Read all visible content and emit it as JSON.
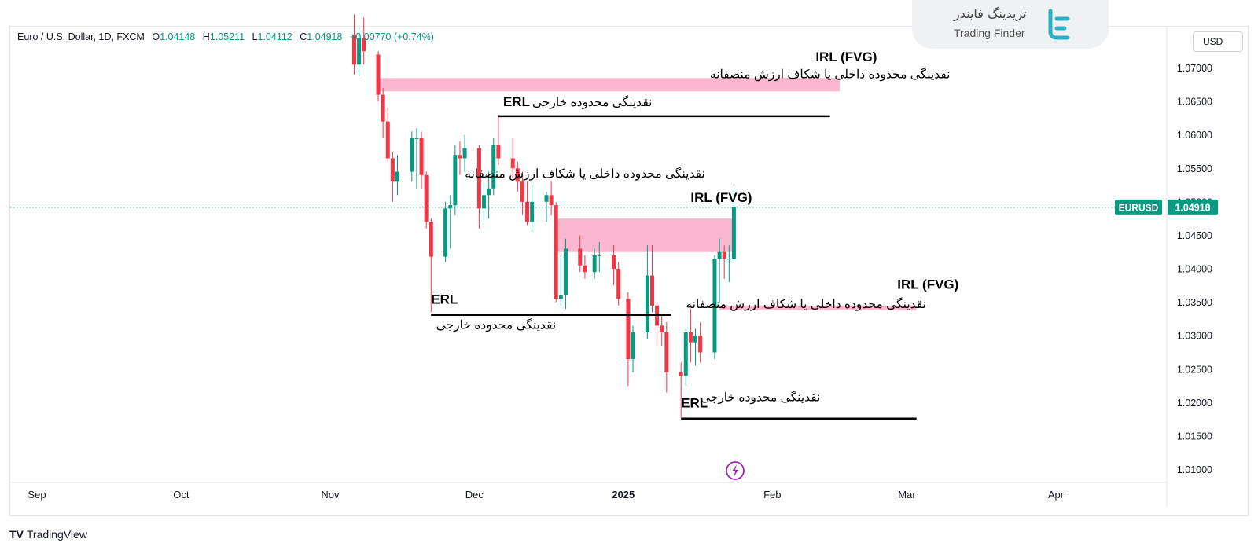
{
  "chart_data": {
    "type": "candlestick",
    "symbol": "EURUSD",
    "legend": {
      "title": "Euro / U.S. Dollar, 1D, FXCM",
      "o_label": "O",
      "o": "1.04148",
      "h_label": "H",
      "h": "1.05211",
      "l_label": "L",
      "l": "1.04112",
      "c_label": "C",
      "c": "1.04918",
      "change": "+0.00770 (+0.74%)"
    },
    "currency": "USD",
    "last_price": "1.04918",
    "last_price_value": 1.04918,
    "ylim": [
      1.0065,
      1.0765
    ],
    "y_ticks": [
      "1.07000",
      "1.06500",
      "1.06000",
      "1.05500",
      "1.05000",
      "1.04500",
      "1.04000",
      "1.03500",
      "1.03000",
      "1.02500",
      "1.02000",
      "1.01500",
      "1.01000"
    ],
    "x_ticks": [
      {
        "date": "2024-09-01",
        "label": "Sep"
      },
      {
        "date": "2024-10-01",
        "label": "Oct"
      },
      {
        "date": "2024-11-01",
        "label": "Nov"
      },
      {
        "date": "2024-12-01",
        "label": "Dec"
      },
      {
        "date": "2025-01-01",
        "label": "2025"
      },
      {
        "date": "2025-02-01",
        "label": "Feb"
      },
      {
        "date": "2025-03-01",
        "label": "Mar"
      },
      {
        "date": "2025-04-01",
        "label": "Apr"
      }
    ],
    "date_range": [
      "2024-09-01",
      "2025-04-01"
    ],
    "up_color": "#089981",
    "down_color": "#f23645",
    "candles": [
      {
        "d": "2024-11-06",
        "o": 1.075,
        "h": 1.078,
        "l": 1.069,
        "c": 1.0705
      },
      {
        "d": "2024-11-07",
        "o": 1.0705,
        "h": 1.076,
        "l": 1.0688,
        "c": 1.0745
      },
      {
        "d": "2024-11-08",
        "o": 1.0745,
        "h": 1.0775,
        "l": 1.0705,
        "c": 1.0725
      },
      {
        "d": "2024-11-11",
        "o": 1.072,
        "h": 1.0725,
        "l": 1.065,
        "c": 1.066
      },
      {
        "d": "2024-11-12",
        "o": 1.066,
        "h": 1.067,
        "l": 1.0595,
        "c": 1.062
      },
      {
        "d": "2024-11-13",
        "o": 1.062,
        "h": 1.064,
        "l": 1.056,
        "c": 1.0565
      },
      {
        "d": "2024-11-14",
        "o": 1.0565,
        "h": 1.0575,
        "l": 1.05,
        "c": 1.053
      },
      {
        "d": "2024-11-15",
        "o": 1.053,
        "h": 1.057,
        "l": 1.051,
        "c": 1.0545
      },
      {
        "d": "2024-11-18",
        "o": 1.0545,
        "h": 1.0605,
        "l": 1.053,
        "c": 1.0595
      },
      {
        "d": "2024-11-19",
        "o": 1.0595,
        "h": 1.061,
        "l": 1.052,
        "c": 1.0595
      },
      {
        "d": "2024-11-20",
        "o": 1.0595,
        "h": 1.0605,
        "l": 1.052,
        "c": 1.054
      },
      {
        "d": "2024-11-21",
        "o": 1.054,
        "h": 1.0545,
        "l": 1.046,
        "c": 1.047
      },
      {
        "d": "2024-11-22",
        "o": 1.047,
        "h": 1.0475,
        "l": 1.0335,
        "c": 1.0418
      },
      {
        "d": "2024-11-25",
        "o": 1.0418,
        "h": 1.05,
        "l": 1.041,
        "c": 1.049
      },
      {
        "d": "2024-11-26",
        "o": 1.049,
        "h": 1.051,
        "l": 1.043,
        "c": 1.0495
      },
      {
        "d": "2024-11-27",
        "o": 1.0495,
        "h": 1.0585,
        "l": 1.048,
        "c": 1.057
      },
      {
        "d": "2024-11-28",
        "o": 1.057,
        "h": 1.059,
        "l": 1.054,
        "c": 1.0565
      },
      {
        "d": "2024-11-29",
        "o": 1.0565,
        "h": 1.06,
        "l": 1.0545,
        "c": 1.058
      },
      {
        "d": "2024-12-02",
        "o": 1.058,
        "h": 1.0585,
        "l": 1.046,
        "c": 1.049
      },
      {
        "d": "2024-12-03",
        "o": 1.049,
        "h": 1.053,
        "l": 1.047,
        "c": 1.051
      },
      {
        "d": "2024-12-04",
        "o": 1.051,
        "h": 1.0545,
        "l": 1.0475,
        "c": 1.052
      },
      {
        "d": "2024-12-05",
        "o": 1.052,
        "h": 1.0595,
        "l": 1.051,
        "c": 1.0585
      },
      {
        "d": "2024-12-06",
        "o": 1.0585,
        "h": 1.063,
        "l": 1.0555,
        "c": 1.0565
      },
      {
        "d": "2024-12-09",
        "o": 1.0565,
        "h": 1.0595,
        "l": 1.0535,
        "c": 1.055
      },
      {
        "d": "2024-12-10",
        "o": 1.055,
        "h": 1.056,
        "l": 1.0515,
        "c": 1.053
      },
      {
        "d": "2024-12-11",
        "o": 1.053,
        "h": 1.0545,
        "l": 1.048,
        "c": 1.05
      },
      {
        "d": "2024-12-12",
        "o": 1.05,
        "h": 1.053,
        "l": 1.0465,
        "c": 1.047
      },
      {
        "d": "2024-12-13",
        "o": 1.047,
        "h": 1.0525,
        "l": 1.0455,
        "c": 1.05
      },
      {
        "d": "2024-12-16",
        "o": 1.05,
        "h": 1.0515,
        "l": 1.047,
        "c": 1.051
      },
      {
        "d": "2024-12-17",
        "o": 1.051,
        "h": 1.053,
        "l": 1.048,
        "c": 1.0495
      },
      {
        "d": "2024-12-18",
        "o": 1.0495,
        "h": 1.05,
        "l": 1.035,
        "c": 1.0355
      },
      {
        "d": "2024-12-19",
        "o": 1.0355,
        "h": 1.042,
        "l": 1.0345,
        "c": 1.036
      },
      {
        "d": "2024-12-20",
        "o": 1.036,
        "h": 1.0445,
        "l": 1.034,
        "c": 1.043
      },
      {
        "d": "2024-12-23",
        "o": 1.043,
        "h": 1.045,
        "l": 1.0395,
        "c": 1.0405
      },
      {
        "d": "2024-12-24",
        "o": 1.0405,
        "h": 1.042,
        "l": 1.0385,
        "c": 1.0395
      },
      {
        "d": "2024-12-26",
        "o": 1.0395,
        "h": 1.043,
        "l": 1.0385,
        "c": 1.042
      },
      {
        "d": "2024-12-27",
        "o": 1.042,
        "h": 1.044,
        "l": 1.0395,
        "c": 1.042
      },
      {
        "d": "2024-12-30",
        "o": 1.042,
        "h": 1.0435,
        "l": 1.0375,
        "c": 1.04
      },
      {
        "d": "2024-12-31",
        "o": 1.04,
        "h": 1.041,
        "l": 1.0345,
        "c": 1.0355
      },
      {
        "d": "2025-01-02",
        "o": 1.0355,
        "h": 1.0365,
        "l": 1.0225,
        "c": 1.0265
      },
      {
        "d": "2025-01-03",
        "o": 1.0265,
        "h": 1.0315,
        "l": 1.0245,
        "c": 1.0305
      },
      {
        "d": "2025-01-06",
        "o": 1.0305,
        "h": 1.0435,
        "l": 1.0295,
        "c": 1.039
      },
      {
        "d": "2025-01-07",
        "o": 1.039,
        "h": 1.0435,
        "l": 1.0335,
        "c": 1.0345
      },
      {
        "d": "2025-01-08",
        "o": 1.0345,
        "h": 1.035,
        "l": 1.0285,
        "c": 1.0315
      },
      {
        "d": "2025-01-09",
        "o": 1.0315,
        "h": 1.033,
        "l": 1.0285,
        "c": 1.0305
      },
      {
        "d": "2025-01-10",
        "o": 1.0305,
        "h": 1.032,
        "l": 1.0215,
        "c": 1.0245
      },
      {
        "d": "2025-01-13",
        "o": 1.0245,
        "h": 1.026,
        "l": 1.0178,
        "c": 1.024
      },
      {
        "d": "2025-01-14",
        "o": 1.024,
        "h": 1.031,
        "l": 1.0225,
        "c": 1.0305
      },
      {
        "d": "2025-01-15",
        "o": 1.0305,
        "h": 1.034,
        "l": 1.026,
        "c": 1.029
      },
      {
        "d": "2025-01-16",
        "o": 1.029,
        "h": 1.031,
        "l": 1.0255,
        "c": 1.03
      },
      {
        "d": "2025-01-17",
        "o": 1.03,
        "h": 1.032,
        "l": 1.026,
        "c": 1.0275
      },
      {
        "d": "2025-01-20",
        "o": 1.0275,
        "h": 1.042,
        "l": 1.0265,
        "c": 1.0415
      },
      {
        "d": "2025-01-21",
        "o": 1.0415,
        "h": 1.0445,
        "l": 1.035,
        "c": 1.0425
      },
      {
        "d": "2025-01-22",
        "o": 1.0425,
        "h": 1.0435,
        "l": 1.0385,
        "c": 1.0415
      },
      {
        "d": "2025-01-23",
        "o": 1.0415,
        "h": 1.0435,
        "l": 1.038,
        "c": 1.0415
      },
      {
        "d": "2025-01-24",
        "o": 1.04148,
        "h": 1.05211,
        "l": 1.04112,
        "c": 1.04918
      }
    ],
    "zones": [
      {
        "type": "FVG",
        "date_from": "2024-11-11",
        "date_to": "2025-02-15",
        "y_top": 1.0685,
        "y_bottom": 1.0665
      },
      {
        "type": "FVG",
        "date_from": "2024-12-18",
        "date_to": "2025-01-24",
        "y_top": 1.0475,
        "y_bottom": 1.0425
      },
      {
        "type": "FVG",
        "date_from": "2025-01-21",
        "date_to": "2025-03-03",
        "y_top": 1.0345,
        "y_bottom": 1.0338
      }
    ],
    "levels": [
      {
        "type": "ERL",
        "price": 1.0628,
        "date_from": "2024-12-06",
        "date_to": "2025-02-13"
      },
      {
        "type": "ERL",
        "price": 1.0331,
        "date_from": "2024-11-22",
        "date_to": "2025-01-11"
      },
      {
        "type": "ERL",
        "price": 1.0176,
        "date_from": "2025-01-13",
        "date_to": "2025-03-03"
      }
    ],
    "annotations": [
      {
        "id": "irl1",
        "text": "IRL (FVG)",
        "date": "2025-02-10",
        "price": 1.071,
        "bold": true
      },
      {
        "id": "irl1fa",
        "text": "نقدینگی محدوده داخلی یا شکاف ارزش منصفانه",
        "date": "2025-03-10",
        "price": 1.0685,
        "rtl": true
      },
      {
        "id": "erl1",
        "text": "ERL",
        "date": "2024-12-07",
        "price": 1.0643,
        "bold": true
      },
      {
        "id": "erl1fa",
        "text": "نقدینگی محدوده خارجی",
        "date": "2025-01-07",
        "price": 1.0643,
        "rtl": true
      },
      {
        "id": "irl2fa",
        "text": "نقدینگی محدوده داخلی یا شکاف ارزش منصفانه",
        "date": "2025-01-18",
        "price": 1.0536,
        "rtl": true
      },
      {
        "id": "irl2",
        "text": "IRL (FVG)",
        "date": "2025-01-15",
        "price": 1.05,
        "bold": true
      },
      {
        "id": "irl3",
        "text": "IRL (FVG)",
        "date": "2025-02-27",
        "price": 1.037,
        "bold": true
      },
      {
        "id": "irl3fa",
        "text": "نقدینگی محدوده داخلی یا شکاف ارزش منصفانه",
        "date": "2025-03-05",
        "price": 1.0341,
        "rtl": true
      },
      {
        "id": "erl2",
        "text": "ERL",
        "date": "2024-11-22",
        "price": 1.0348,
        "bold": true
      },
      {
        "id": "erl2fa",
        "text": "نقدینگی محدوده خارجی",
        "date": "2024-12-18",
        "price": 1.031,
        "rtl": true
      },
      {
        "id": "erl3",
        "text": "ERL",
        "date": "2025-01-13",
        "price": 1.0193,
        "bold": true
      },
      {
        "id": "erl3fa",
        "text": "نقدینگی محدوده خارجی",
        "date": "2025-02-11",
        "price": 1.0202,
        "rtl": true
      }
    ]
  },
  "branding": {
    "provider_fa": "تریدینگ فایندر",
    "provider_en": "Trading Finder",
    "platform": "TradingView"
  }
}
